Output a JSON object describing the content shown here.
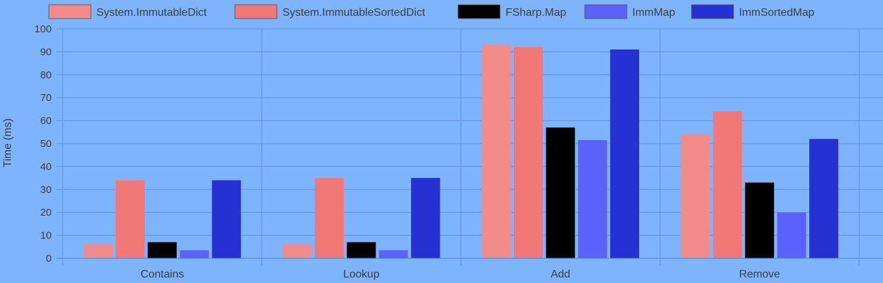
{
  "chart_data": {
    "type": "bar",
    "categories": [
      "Contains",
      "Lookup",
      "Add",
      "Remove"
    ],
    "series": [
      {
        "name": "System.ImmutableDict",
        "color": "#f38b8b",
        "values": [
          6,
          6,
          93,
          54
        ]
      },
      {
        "name": "System.ImmutableSortedDict",
        "color": "#f27878",
        "values": [
          34,
          35,
          92,
          64
        ]
      },
      {
        "name": "FSharp.Map",
        "color": "#000000",
        "values": [
          7,
          7,
          57,
          33
        ]
      },
      {
        "name": "ImmMap",
        "color": "#5b62fb",
        "values": [
          3.5,
          3.5,
          51.5,
          20
        ]
      },
      {
        "name": "ImmSortedMap",
        "color": "#2631d4",
        "values": [
          34,
          35,
          91,
          52
        ]
      }
    ],
    "ylabel": "Time (ms)",
    "xlabel": "",
    "ylim": [
      0,
      100
    ],
    "yticks": [
      "0",
      "10",
      "20",
      "30",
      "40",
      "50",
      "60",
      "70",
      "80",
      "90",
      "100"
    ],
    "grid": true,
    "legend_position": "top"
  },
  "colors": {
    "background": "#7eb4fb",
    "grid": "#5f93dd",
    "text": "#3d3d3d"
  }
}
